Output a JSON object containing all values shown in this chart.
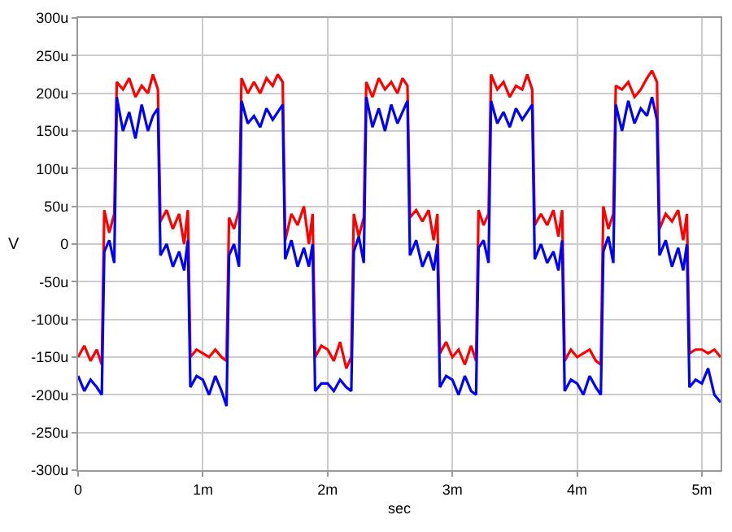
{
  "chart_data": {
    "type": "line",
    "xlabel": "sec",
    "ylabel": "V",
    "x": [
      0,
      0.05,
      0.1,
      0.15,
      0.19,
      0.21,
      0.25,
      0.29,
      0.31,
      0.36,
      0.41,
      0.46,
      0.51,
      0.56,
      0.6,
      0.64,
      0.66,
      0.71,
      0.76,
      0.81,
      0.85,
      0.88,
      0.9,
      0.95,
      1,
      1.05,
      1.1,
      1.15,
      1.19,
      1.21,
      1.25,
      1.29,
      1.31,
      1.36,
      1.41,
      1.46,
      1.51,
      1.56,
      1.6,
      1.64,
      1.66,
      1.71,
      1.76,
      1.81,
      1.85,
      1.88,
      1.9,
      1.95,
      2,
      2.05,
      2.1,
      2.15,
      2.19,
      2.21,
      2.25,
      2.29,
      2.31,
      2.36,
      2.41,
      2.46,
      2.51,
      2.56,
      2.6,
      2.64,
      2.66,
      2.71,
      2.76,
      2.81,
      2.85,
      2.88,
      2.9,
      2.95,
      3,
      3.05,
      3.1,
      3.15,
      3.19,
      3.21,
      3.25,
      3.29,
      3.31,
      3.36,
      3.41,
      3.46,
      3.51,
      3.56,
      3.6,
      3.64,
      3.66,
      3.71,
      3.76,
      3.81,
      3.85,
      3.88,
      3.9,
      3.95,
      4,
      4.05,
      4.1,
      4.15,
      4.19,
      4.21,
      4.25,
      4.29,
      4.31,
      4.36,
      4.41,
      4.46,
      4.51,
      4.56,
      4.6,
      4.64,
      4.66,
      4.71,
      4.76,
      4.81,
      4.85,
      4.88,
      4.9,
      4.95,
      5,
      5.05,
      5.1,
      5.15
    ],
    "series": [
      {
        "color": "#ff0000",
        "values": [
          -150,
          -135,
          -155,
          -140,
          -160,
          45,
          15,
          40,
          215,
          205,
          220,
          195,
          210,
          200,
          225,
          205,
          30,
          45,
          20,
          40,
          0,
          45,
          -150,
          -140,
          -145,
          -150,
          -140,
          -150,
          -155,
          35,
          20,
          45,
          220,
          200,
          215,
          200,
          220,
          210,
          225,
          215,
          5,
          40,
          25,
          50,
          0,
          40,
          -150,
          -135,
          -140,
          -155,
          -130,
          -165,
          -150,
          40,
          10,
          35,
          215,
          195,
          220,
          205,
          215,
          200,
          220,
          210,
          35,
          45,
          30,
          45,
          5,
          40,
          -145,
          -130,
          -150,
          -140,
          -160,
          -135,
          -155,
          45,
          25,
          40,
          225,
          205,
          215,
          195,
          210,
          205,
          225,
          205,
          25,
          40,
          25,
          45,
          10,
          45,
          -155,
          -140,
          -150,
          -145,
          -140,
          -155,
          -160,
          50,
          20,
          40,
          210,
          205,
          215,
          195,
          205,
          220,
          230,
          215,
          20,
          40,
          30,
          45,
          5,
          40,
          -145,
          -140,
          -140,
          -145,
          -140,
          -150
        ]
      },
      {
        "color": "#0000ff",
        "values": [
          -175,
          -195,
          -180,
          -190,
          -200,
          -10,
          5,
          -25,
          195,
          150,
          175,
          140,
          185,
          150,
          170,
          180,
          -15,
          0,
          -30,
          -10,
          -35,
          5,
          -190,
          -175,
          -180,
          -200,
          -175,
          -195,
          -215,
          -15,
          0,
          -30,
          190,
          160,
          170,
          155,
          180,
          165,
          175,
          185,
          -20,
          5,
          -30,
          -5,
          -30,
          0,
          -195,
          -185,
          -185,
          -195,
          -180,
          -190,
          -195,
          -10,
          10,
          -25,
          195,
          155,
          180,
          150,
          185,
          160,
          175,
          190,
          -15,
          5,
          -30,
          -10,
          -35,
          0,
          -190,
          -175,
          -180,
          -200,
          -175,
          -195,
          -200,
          -5,
          5,
          -25,
          190,
          160,
          175,
          155,
          180,
          165,
          175,
          185,
          -20,
          0,
          -25,
          -10,
          -35,
          5,
          -195,
          -180,
          -185,
          -200,
          -175,
          -190,
          -200,
          -10,
          10,
          -25,
          185,
          150,
          190,
          160,
          180,
          170,
          195,
          165,
          -15,
          5,
          -30,
          -5,
          -35,
          0,
          -190,
          -180,
          -185,
          -165,
          -200,
          -210
        ]
      }
    ],
    "xlim": [
      0,
      5.15
    ],
    "xticks": [
      0,
      {
        "value": 1,
        "label": "1m"
      },
      {
        "value": 2,
        "label": "2m"
      },
      {
        "value": 3,
        "label": "3m"
      },
      {
        "value": 4,
        "label": "4m"
      },
      {
        "value": 5,
        "label": "5m"
      }
    ],
    "ylim": [
      -300,
      300
    ],
    "yticks": [
      {
        "value": -300,
        "label": "-300u"
      },
      {
        "value": -250,
        "label": "-250u"
      },
      {
        "value": -200,
        "label": "-200u"
      },
      {
        "value": -150,
        "label": "-150u"
      },
      {
        "value": -100,
        "label": "-100u"
      },
      {
        "value": -50,
        "label": "-50u"
      },
      0,
      {
        "value": 50,
        "label": "50u"
      },
      {
        "value": 100,
        "label": "100u"
      },
      {
        "value": 150,
        "label": "150u"
      },
      {
        "value": 200,
        "label": "200u"
      },
      {
        "value": 250,
        "label": "250u"
      },
      {
        "value": 300,
        "label": "300u"
      }
    ],
    "grid": true,
    "marker": "none",
    "line_style": "solid"
  }
}
